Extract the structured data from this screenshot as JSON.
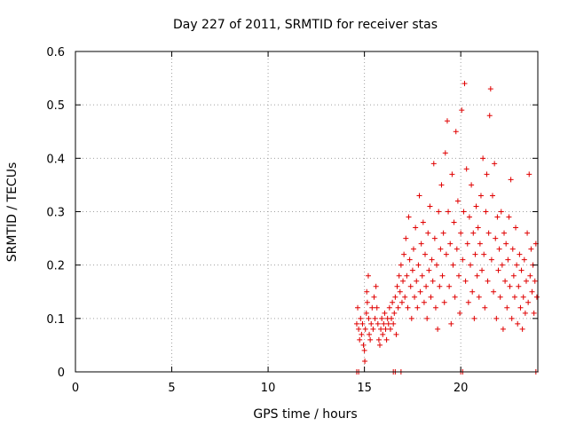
{
  "chart_data": {
    "type": "scatter",
    "title": "Day 227 of 2011, SRMTID for receiver stas",
    "xlabel": "GPS time / hours",
    "ylabel": "SRMTID / TECUs",
    "xlim": [
      0,
      24
    ],
    "ylim": [
      0,
      0.6
    ],
    "xticks": [
      0,
      5,
      10,
      15,
      20
    ],
    "xtick_labels": [
      "0",
      "5",
      "10",
      "15",
      "20"
    ],
    "yticks": [
      0,
      0.1,
      0.2,
      0.3,
      0.4,
      0.5,
      0.6
    ],
    "ytick_labels": [
      "0",
      "0.1",
      "0.2",
      "0.3",
      "0.4",
      "0.5",
      "0.6"
    ],
    "grid": true,
    "marker": "plus",
    "color": "#e00000",
    "series": [
      {
        "name": "stas",
        "points": [
          [
            14.6,
            0.0
          ],
          [
            14.7,
            0.0
          ],
          [
            16.5,
            0.0
          ],
          [
            16.6,
            0.0
          ],
          [
            16.9,
            0.0
          ],
          [
            20.0,
            0.0
          ],
          [
            20.1,
            0.0
          ],
          [
            23.9,
            0.0
          ],
          [
            14.6,
            0.09
          ],
          [
            14.65,
            0.12
          ],
          [
            14.7,
            0.08
          ],
          [
            14.75,
            0.06
          ],
          [
            14.8,
            0.1
          ],
          [
            14.85,
            0.07
          ],
          [
            14.9,
            0.09
          ],
          [
            14.95,
            0.05
          ],
          [
            15.0,
            0.04
          ],
          [
            15.02,
            0.02
          ],
          [
            15.05,
            0.08
          ],
          [
            15.1,
            0.11
          ],
          [
            15.12,
            0.15
          ],
          [
            15.15,
            0.13
          ],
          [
            15.2,
            0.18
          ],
          [
            15.22,
            0.1
          ],
          [
            15.25,
            0.07
          ],
          [
            15.3,
            0.06
          ],
          [
            15.35,
            0.09
          ],
          [
            15.4,
            0.12
          ],
          [
            15.45,
            0.08
          ],
          [
            15.5,
            0.14
          ],
          [
            15.55,
            0.1
          ],
          [
            15.6,
            0.16
          ],
          [
            15.65,
            0.12
          ],
          [
            15.7,
            0.09
          ],
          [
            15.75,
            0.06
          ],
          [
            15.8,
            0.05
          ],
          [
            15.85,
            0.08
          ],
          [
            15.9,
            0.1
          ],
          [
            15.95,
            0.07
          ],
          [
            16.0,
            0.09
          ],
          [
            16.05,
            0.11
          ],
          [
            16.1,
            0.08
          ],
          [
            16.15,
            0.06
          ],
          [
            16.2,
            0.1
          ],
          [
            16.25,
            0.09
          ],
          [
            16.3,
            0.12
          ],
          [
            16.35,
            0.08
          ],
          [
            16.4,
            0.1
          ],
          [
            16.45,
            0.13
          ],
          [
            16.5,
            0.09
          ],
          [
            16.55,
            0.11
          ],
          [
            16.6,
            0.14
          ],
          [
            16.65,
            0.07
          ],
          [
            16.7,
            0.16
          ],
          [
            16.75,
            0.12
          ],
          [
            16.8,
            0.18
          ],
          [
            16.85,
            0.15
          ],
          [
            16.9,
            0.2
          ],
          [
            16.95,
            0.13
          ],
          [
            17.0,
            0.17
          ],
          [
            17.05,
            0.22
          ],
          [
            17.1,
            0.14
          ],
          [
            17.15,
            0.25
          ],
          [
            17.2,
            0.18
          ],
          [
            17.25,
            0.12
          ],
          [
            17.3,
            0.29
          ],
          [
            17.35,
            0.21
          ],
          [
            17.4,
            0.16
          ],
          [
            17.45,
            0.1
          ],
          [
            17.5,
            0.19
          ],
          [
            17.55,
            0.23
          ],
          [
            17.6,
            0.14
          ],
          [
            17.65,
            0.27
          ],
          [
            17.7,
            0.17
          ],
          [
            17.75,
            0.12
          ],
          [
            17.8,
            0.2
          ],
          [
            17.85,
            0.33
          ],
          [
            17.9,
            0.15
          ],
          [
            17.95,
            0.24
          ],
          [
            18.0,
            0.18
          ],
          [
            18.05,
            0.28
          ],
          [
            18.1,
            0.13
          ],
          [
            18.15,
            0.22
          ],
          [
            18.2,
            0.16
          ],
          [
            18.25,
            0.1
          ],
          [
            18.3,
            0.26
          ],
          [
            18.35,
            0.19
          ],
          [
            18.4,
            0.31
          ],
          [
            18.45,
            0.14
          ],
          [
            18.5,
            0.21
          ],
          [
            18.55,
            0.17
          ],
          [
            18.6,
            0.39
          ],
          [
            18.65,
            0.25
          ],
          [
            18.7,
            0.12
          ],
          [
            18.75,
            0.2
          ],
          [
            18.8,
            0.08
          ],
          [
            18.85,
            0.3
          ],
          [
            18.9,
            0.16
          ],
          [
            18.95,
            0.23
          ],
          [
            19.0,
            0.35
          ],
          [
            19.05,
            0.18
          ],
          [
            19.1,
            0.26
          ],
          [
            19.15,
            0.13
          ],
          [
            19.2,
            0.41
          ],
          [
            19.25,
            0.22
          ],
          [
            19.3,
            0.47
          ],
          [
            19.35,
            0.3
          ],
          [
            19.4,
            0.16
          ],
          [
            19.45,
            0.24
          ],
          [
            19.5,
            0.09
          ],
          [
            19.55,
            0.37
          ],
          [
            19.6,
            0.2
          ],
          [
            19.65,
            0.28
          ],
          [
            19.7,
            0.14
          ],
          [
            19.75,
            0.45
          ],
          [
            19.8,
            0.23
          ],
          [
            19.85,
            0.32
          ],
          [
            19.9,
            0.18
          ],
          [
            19.95,
            0.11
          ],
          [
            20.0,
            0.26
          ],
          [
            20.05,
            0.49
          ],
          [
            20.1,
            0.21
          ],
          [
            20.15,
            0.3
          ],
          [
            20.2,
            0.54
          ],
          [
            20.25,
            0.17
          ],
          [
            20.3,
            0.38
          ],
          [
            20.35,
            0.24
          ],
          [
            20.4,
            0.13
          ],
          [
            20.45,
            0.29
          ],
          [
            20.5,
            0.2
          ],
          [
            20.55,
            0.35
          ],
          [
            20.6,
            0.15
          ],
          [
            20.65,
            0.26
          ],
          [
            20.7,
            0.1
          ],
          [
            20.75,
            0.22
          ],
          [
            20.8,
            0.31
          ],
          [
            20.85,
            0.18
          ],
          [
            20.9,
            0.27
          ],
          [
            20.95,
            0.14
          ],
          [
            21.0,
            0.24
          ],
          [
            21.05,
            0.33
          ],
          [
            21.1,
            0.19
          ],
          [
            21.15,
            0.4
          ],
          [
            21.2,
            0.22
          ],
          [
            21.25,
            0.12
          ],
          [
            21.3,
            0.3
          ],
          [
            21.35,
            0.37
          ],
          [
            21.4,
            0.17
          ],
          [
            21.45,
            0.26
          ],
          [
            21.5,
            0.48
          ],
          [
            21.55,
            0.53
          ],
          [
            21.6,
            0.21
          ],
          [
            21.65,
            0.33
          ],
          [
            21.7,
            0.15
          ],
          [
            21.75,
            0.39
          ],
          [
            21.8,
            0.25
          ],
          [
            21.85,
            0.1
          ],
          [
            21.9,
            0.29
          ],
          [
            21.95,
            0.19
          ],
          [
            22.0,
            0.23
          ],
          [
            22.05,
            0.14
          ],
          [
            22.1,
            0.3
          ],
          [
            22.15,
            0.2
          ],
          [
            22.2,
            0.08
          ],
          [
            22.25,
            0.26
          ],
          [
            22.3,
            0.17
          ],
          [
            22.35,
            0.24
          ],
          [
            22.4,
            0.12
          ],
          [
            22.45,
            0.21
          ],
          [
            22.5,
            0.29
          ],
          [
            22.55,
            0.16
          ],
          [
            22.6,
            0.36
          ],
          [
            22.65,
            0.1
          ],
          [
            22.7,
            0.23
          ],
          [
            22.75,
            0.18
          ],
          [
            22.8,
            0.14
          ],
          [
            22.85,
            0.27
          ],
          [
            22.9,
            0.2
          ],
          [
            22.95,
            0.09
          ],
          [
            23.0,
            0.16
          ],
          [
            23.05,
            0.22
          ],
          [
            23.1,
            0.12
          ],
          [
            23.15,
            0.19
          ],
          [
            23.2,
            0.08
          ],
          [
            23.25,
            0.14
          ],
          [
            23.3,
            0.21
          ],
          [
            23.35,
            0.11
          ],
          [
            23.4,
            0.17
          ],
          [
            23.45,
            0.26
          ],
          [
            23.5,
            0.13
          ],
          [
            23.55,
            0.37
          ],
          [
            23.6,
            0.18
          ],
          [
            23.65,
            0.23
          ],
          [
            23.7,
            0.15
          ],
          [
            23.75,
            0.2
          ],
          [
            23.8,
            0.11
          ],
          [
            23.85,
            0.17
          ],
          [
            23.9,
            0.24
          ],
          [
            23.95,
            0.14
          ]
        ]
      }
    ]
  }
}
